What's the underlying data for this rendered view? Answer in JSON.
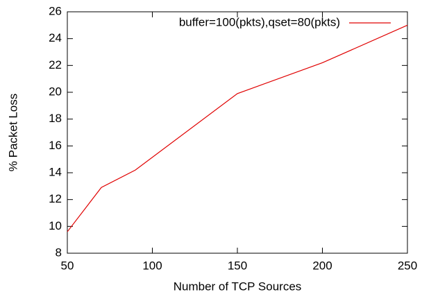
{
  "chart_data": {
    "type": "line",
    "xlabel": "Number of TCP Sources",
    "ylabel": "% Packet Loss",
    "x": [
      50,
      70,
      90,
      150,
      200,
      250
    ],
    "series": [
      {
        "name": "buffer=100(pkts),qset=80(pkts)",
        "color": "#e00000",
        "values": [
          9.6,
          12.9,
          14.2,
          19.9,
          22.2,
          25.0
        ]
      }
    ],
    "xlim": [
      50,
      250
    ],
    "xticks": [
      50,
      100,
      150,
      200,
      250
    ],
    "ylim": [
      8,
      26
    ],
    "yticks": [
      8,
      10,
      12,
      14,
      16,
      18,
      20,
      22,
      24,
      26
    ],
    "legend": "top-right"
  }
}
